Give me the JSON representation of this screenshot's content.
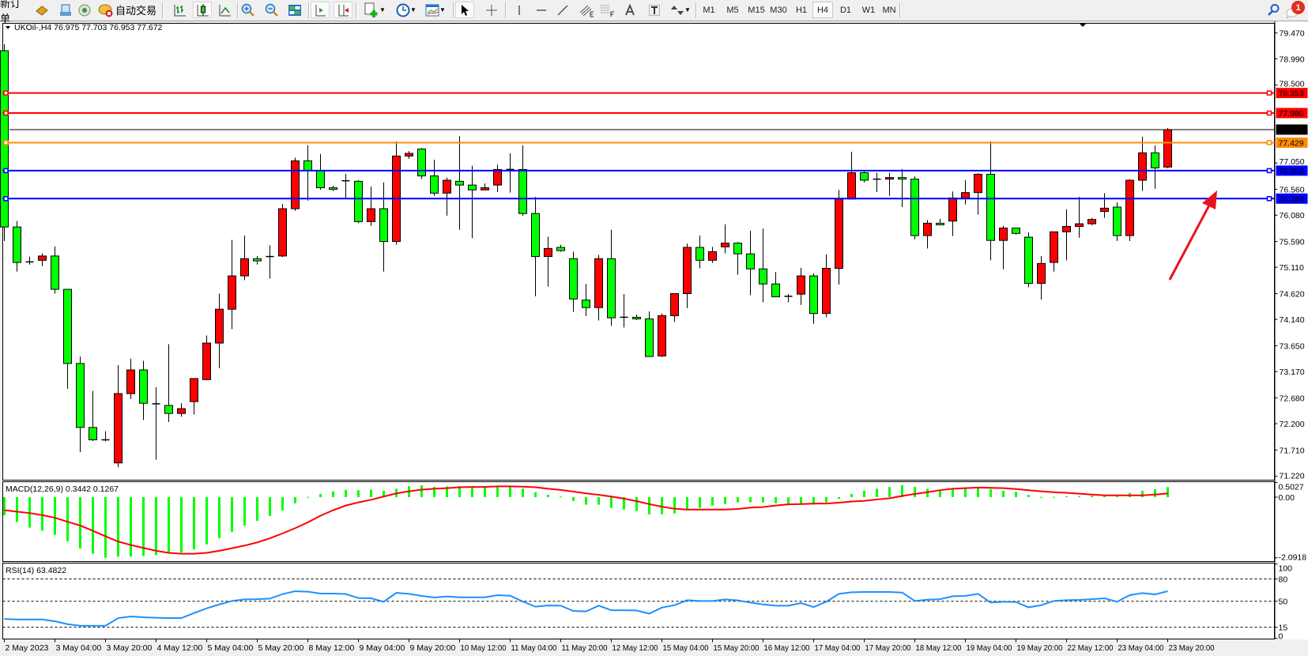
{
  "toolbar": {
    "new_order_label": "新订单",
    "autotrade_label": "自动交易",
    "timeframes": [
      "M1",
      "M5",
      "M15",
      "M30",
      "H1",
      "H4",
      "D1",
      "W1",
      "MN"
    ],
    "active_timeframe": "H4",
    "notification_count": "1",
    "icons": [
      "market-watch-icon",
      "terminal-icon",
      "signals-icon",
      "autotrade-icon",
      "bar-chart-icon",
      "candlestick-icon",
      "line-chart-icon",
      "zoom-in-icon",
      "zoom-out-icon",
      "tile-windows-icon",
      "autoscroll-icon",
      "chart-shift-icon",
      "new-chart-icon",
      "periods-clock-icon",
      "templates-icon",
      "cursor-icon",
      "crosshair-icon",
      "vertical-line-icon",
      "horizontal-line-icon",
      "trendline-icon",
      "fibo-channel-icon",
      "fibo-retracement-icon",
      "text-icon",
      "text-label-icon",
      "arrows-icon",
      "search-icon",
      "notification-icon"
    ]
  },
  "chart": {
    "header": "UKOil-,H4  76.975 77.703 76.953 77.672",
    "symbol": "UKOil-",
    "timeframe": "H4",
    "ohlc": {
      "open": 76.975,
      "high": 77.703,
      "low": 76.953,
      "close": 77.672
    },
    "bull_color": "#ff0000",
    "bear_color": "#00ff00"
  },
  "chart_data": [
    {
      "type": "candlestick",
      "title": "UKOil-,H4",
      "ylim": [
        71.22,
        79.47
      ],
      "y_ticks": [
        "79.470",
        "78.990",
        "78.500",
        "77.050",
        "76.560",
        "76.080",
        "75.590",
        "75.110",
        "74.620",
        "74.140",
        "73.650",
        "73.170",
        "72.680",
        "72.200",
        "71.710",
        "71.220"
      ],
      "x_ticks": [
        "2 May 2023",
        "3 May 04:00",
        "3 May 20:00",
        "4 May 12:00",
        "5 May 04:00",
        "5 May 20:00",
        "8 May 12:00",
        "9 May 04:00",
        "9 May 20:00",
        "10 May 12:00",
        "11 May 04:00",
        "11 May 20:00",
        "12 May 12:00",
        "15 May 04:00",
        "15 May 20:00",
        "16 May 12:00",
        "17 May 04:00",
        "17 May 20:00",
        "18 May 12:00",
        "19 May 04:00",
        "19 May 20:00",
        "22 May 12:00",
        "23 May 04:00",
        "23 May 20:00"
      ],
      "candles_ohlc": [
        [
          79.14,
          79.26,
          75.6,
          75.86
        ],
        [
          75.86,
          75.97,
          75.03,
          75.2
        ],
        [
          75.21,
          75.31,
          75.16,
          75.2
        ],
        [
          75.24,
          75.37,
          75.13,
          75.32
        ],
        [
          75.32,
          75.5,
          74.62,
          74.7
        ],
        [
          74.7,
          74.7,
          72.85,
          73.32
        ],
        [
          73.32,
          73.45,
          71.67,
          72.13
        ],
        [
          72.13,
          72.81,
          71.88,
          71.9
        ],
        [
          71.9,
          72.06,
          71.87,
          71.89
        ],
        [
          71.47,
          73.29,
          71.39,
          72.76
        ],
        [
          72.76,
          73.41,
          72.66,
          73.2
        ],
        [
          73.2,
          73.37,
          72.27,
          72.58
        ],
        [
          72.57,
          72.88,
          71.53,
          72.56
        ],
        [
          72.54,
          73.68,
          72.23,
          72.39
        ],
        [
          72.39,
          72.58,
          72.33,
          72.48
        ],
        [
          72.61,
          73.04,
          72.37,
          73.04
        ],
        [
          73.02,
          73.84,
          73.01,
          73.7
        ],
        [
          73.7,
          74.62,
          73.23,
          74.33
        ],
        [
          74.33,
          75.62,
          73.96,
          74.95
        ],
        [
          74.95,
          75.7,
          74.87,
          75.27
        ],
        [
          75.27,
          75.32,
          75.16,
          75.23
        ],
        [
          75.31,
          75.52,
          74.9,
          75.31
        ],
        [
          75.32,
          76.29,
          75.3,
          76.2
        ],
        [
          76.2,
          77.15,
          76.16,
          77.09
        ],
        [
          77.09,
          77.38,
          76.35,
          76.91
        ],
        [
          76.91,
          77.22,
          76.55,
          76.59
        ],
        [
          76.59,
          76.63,
          76.53,
          76.56
        ],
        [
          76.72,
          76.85,
          76.39,
          76.72
        ],
        [
          76.71,
          76.73,
          75.93,
          75.96
        ],
        [
          75.96,
          76.61,
          75.88,
          76.2
        ],
        [
          76.2,
          76.69,
          75.03,
          75.59
        ],
        [
          75.59,
          77.45,
          75.53,
          77.18
        ],
        [
          77.18,
          77.27,
          77.13,
          77.23
        ],
        [
          77.31,
          77.33,
          76.75,
          76.81
        ],
        [
          76.81,
          77.11,
          76.44,
          76.49
        ],
        [
          76.49,
          76.78,
          76.07,
          76.73
        ],
        [
          76.71,
          77.55,
          75.81,
          76.64
        ],
        [
          76.64,
          77.0,
          75.65,
          76.55
        ],
        [
          76.55,
          76.67,
          76.55,
          76.59
        ],
        [
          76.64,
          77.02,
          76.51,
          76.93
        ],
        [
          76.93,
          77.23,
          76.5,
          76.93
        ],
        [
          76.93,
          77.38,
          76.07,
          76.11
        ],
        [
          76.11,
          76.42,
          74.57,
          75.31
        ],
        [
          75.31,
          75.68,
          74.75,
          75.46
        ],
        [
          75.48,
          75.53,
          75.4,
          75.42
        ],
        [
          75.27,
          75.4,
          74.28,
          74.52
        ],
        [
          74.5,
          74.8,
          74.2,
          74.36
        ],
        [
          74.36,
          75.34,
          74.12,
          75.27
        ],
        [
          75.27,
          75.81,
          74.02,
          74.17
        ],
        [
          74.18,
          74.61,
          73.99,
          74.18
        ],
        [
          74.18,
          74.23,
          74.13,
          74.15
        ],
        [
          74.15,
          74.29,
          73.45,
          73.45
        ],
        [
          73.46,
          74.25,
          73.44,
          74.21
        ],
        [
          74.21,
          74.62,
          74.09,
          74.62
        ],
        [
          74.62,
          75.55,
          74.35,
          75.48
        ],
        [
          75.48,
          75.7,
          75.09,
          75.24
        ],
        [
          75.24,
          75.49,
          75.19,
          75.4
        ],
        [
          75.49,
          75.91,
          75.37,
          75.56
        ],
        [
          75.56,
          75.58,
          74.97,
          75.36
        ],
        [
          75.36,
          75.79,
          74.59,
          75.08
        ],
        [
          75.08,
          75.83,
          74.46,
          74.8
        ],
        [
          74.8,
          75.02,
          74.56,
          74.56
        ],
        [
          74.57,
          74.61,
          74.46,
          74.57
        ],
        [
          74.61,
          75.1,
          74.41,
          74.95
        ],
        [
          74.95,
          75.0,
          74.06,
          74.25
        ],
        [
          74.25,
          75.35,
          74.18,
          75.09
        ],
        [
          75.09,
          76.55,
          74.79,
          76.38
        ],
        [
          76.38,
          77.26,
          76.38,
          76.87
        ],
        [
          76.87,
          76.9,
          76.69,
          76.73
        ],
        [
          76.75,
          76.87,
          76.51,
          76.75
        ],
        [
          76.75,
          76.87,
          76.44,
          76.78
        ],
        [
          76.78,
          76.94,
          76.23,
          76.75
        ],
        [
          76.75,
          76.8,
          75.63,
          75.7
        ],
        [
          75.7,
          75.99,
          75.46,
          75.93
        ],
        [
          75.93,
          76.01,
          75.89,
          75.9
        ],
        [
          75.97,
          76.52,
          75.69,
          76.4
        ],
        [
          76.4,
          76.73,
          76.28,
          76.5
        ],
        [
          76.5,
          76.86,
          76.09,
          76.84
        ],
        [
          76.84,
          77.45,
          75.24,
          75.61
        ],
        [
          75.61,
          75.88,
          75.07,
          75.84
        ],
        [
          75.84,
          75.84,
          75.72,
          75.74
        ],
        [
          75.67,
          75.76,
          74.74,
          74.81
        ],
        [
          74.81,
          75.32,
          74.51,
          75.18
        ],
        [
          75.2,
          75.77,
          75.03,
          75.77
        ],
        [
          75.77,
          76.19,
          75.24,
          75.87
        ],
        [
          75.87,
          76.42,
          75.66,
          75.92
        ],
        [
          75.92,
          76.03,
          75.89,
          76.0
        ],
        [
          76.15,
          76.49,
          76.03,
          76.21
        ],
        [
          76.23,
          76.32,
          75.6,
          75.7
        ],
        [
          75.7,
          76.75,
          75.6,
          76.73
        ],
        [
          76.73,
          77.54,
          76.53,
          77.24
        ],
        [
          77.24,
          77.38,
          76.57,
          76.96
        ],
        [
          76.975,
          77.703,
          76.953,
          77.672
        ]
      ],
      "price_lines": [
        {
          "value": 78.353,
          "label": "78.353",
          "color": "#ff0000"
        },
        {
          "value": 77.98,
          "label": "77.980",
          "color": "#ff0000"
        },
        {
          "value": 77.672,
          "label": "77.672",
          "color": "#000000"
        },
        {
          "value": 77.429,
          "label": "77.429",
          "color": "#ff8c00"
        },
        {
          "value": 76.908,
          "label": "76.908",
          "color": "#0000ff"
        },
        {
          "value": 76.388,
          "label": "76.388",
          "color": "#0000ff"
        }
      ],
      "annotations": [
        {
          "type": "arrow",
          "color": "#e8141c",
          "direction": "up-right"
        }
      ]
    },
    {
      "type": "bar+line",
      "title": "MACD(12,26,9) 0.3442 0.1267",
      "label": "MACD(12,26,9) 0.3442 0.1267",
      "ylim": [
        -2.0918,
        0.5027
      ],
      "y_ticks": [
        "0.5027",
        "0.00",
        "-2.0918"
      ],
      "histogram_color": "#00ff00",
      "signal_color": "#ff0000",
      "histogram": [
        -0.62,
        -0.86,
        -1.05,
        -1.16,
        -1.3,
        -1.53,
        -1.77,
        -1.95,
        -2.09,
        -2.05,
        -2.05,
        -2.03,
        -2.0,
        -1.94,
        -1.91,
        -1.8,
        -1.63,
        -1.41,
        -1.2,
        -0.98,
        -0.82,
        -0.65,
        -0.46,
        -0.21,
        0.01,
        0.11,
        0.2,
        0.25,
        0.24,
        0.26,
        0.22,
        0.29,
        0.38,
        0.41,
        0.35,
        0.37,
        0.38,
        0.35,
        0.35,
        0.38,
        0.37,
        0.29,
        0.17,
        0.08,
        0.02,
        -0.13,
        -0.26,
        -0.26,
        -0.37,
        -0.43,
        -0.48,
        -0.59,
        -0.59,
        -0.56,
        -0.43,
        -0.37,
        -0.29,
        -0.24,
        -0.18,
        -0.18,
        -0.18,
        -0.21,
        -0.24,
        -0.24,
        -0.26,
        -0.18,
        -0.06,
        0.11,
        0.22,
        0.29,
        0.35,
        0.41,
        0.35,
        0.29,
        0.22,
        0.27,
        0.29,
        0.33,
        0.27,
        0.22,
        0.18,
        0.08,
        0.01,
        0.01,
        0.03,
        0.03,
        0.05,
        0.05,
        0.03,
        0.14,
        0.22,
        0.27,
        0.3442
      ],
      "signal": [
        -0.45,
        -0.5,
        -0.55,
        -0.62,
        -0.71,
        -0.85,
        -0.98,
        -1.16,
        -1.35,
        -1.53,
        -1.65,
        -1.75,
        -1.85,
        -1.92,
        -1.95,
        -1.95,
        -1.92,
        -1.85,
        -1.76,
        -1.67,
        -1.56,
        -1.42,
        -1.25,
        -1.07,
        -0.87,
        -0.64,
        -0.45,
        -0.29,
        -0.18,
        -0.09,
        0.02,
        0.13,
        0.2,
        0.26,
        0.29,
        0.31,
        0.34,
        0.35,
        0.35,
        0.37,
        0.37,
        0.36,
        0.34,
        0.29,
        0.25,
        0.19,
        0.13,
        0.08,
        0.02,
        -0.05,
        -0.14,
        -0.24,
        -0.33,
        -0.4,
        -0.43,
        -0.43,
        -0.43,
        -0.43,
        -0.41,
        -0.36,
        -0.34,
        -0.29,
        -0.25,
        -0.24,
        -0.22,
        -0.22,
        -0.19,
        -0.15,
        -0.13,
        -0.08,
        -0.04,
        0.04,
        0.11,
        0.17,
        0.24,
        0.29,
        0.31,
        0.33,
        0.32,
        0.31,
        0.28,
        0.24,
        0.2,
        0.17,
        0.15,
        0.12,
        0.09,
        0.06,
        0.06,
        0.06,
        0.06,
        0.09,
        0.1267
      ]
    },
    {
      "type": "line",
      "title": "RSI(14) 63.4822",
      "label": "RSI(14) 63.4822",
      "ylim": [
        0,
        100
      ],
      "y_ticks": [
        "100",
        "80",
        "50",
        "15",
        "0"
      ],
      "levels": [
        80,
        50,
        15
      ],
      "line_color": "#1e90ff",
      "values": [
        26.2,
        25.5,
        25.5,
        25.5,
        23.0,
        19.1,
        17.0,
        17.0,
        17.0,
        27.3,
        29.4,
        28.4,
        27.7,
        27.3,
        27.3,
        34.0,
        40.4,
        45.7,
        50.4,
        52.5,
        52.8,
        53.5,
        59.6,
        63.5,
        62.8,
        60.3,
        60.3,
        59.6,
        54.3,
        53.9,
        49.3,
        61.3,
        59.9,
        57.1,
        55.0,
        56.4,
        55.3,
        55.3,
        55.3,
        58.2,
        57.4,
        49.6,
        42.6,
        44.3,
        44.0,
        36.9,
        36.2,
        44.0,
        37.9,
        37.9,
        37.6,
        33.3,
        41.5,
        44.7,
        51.4,
        50.4,
        50.4,
        52.5,
        51.1,
        48.2,
        45.7,
        44.0,
        44.0,
        47.5,
        42.2,
        49.3,
        59.9,
        62.1,
        62.4,
        62.4,
        62.4,
        61.7,
        50.4,
        52.1,
        52.8,
        56.7,
        57.1,
        59.9,
        48.2,
        49.3,
        48.9,
        41.8,
        44.7,
        50.4,
        51.4,
        51.8,
        52.8,
        53.9,
        49.3,
        58.2,
        61.0,
        59.2,
        63.4822
      ]
    }
  ]
}
